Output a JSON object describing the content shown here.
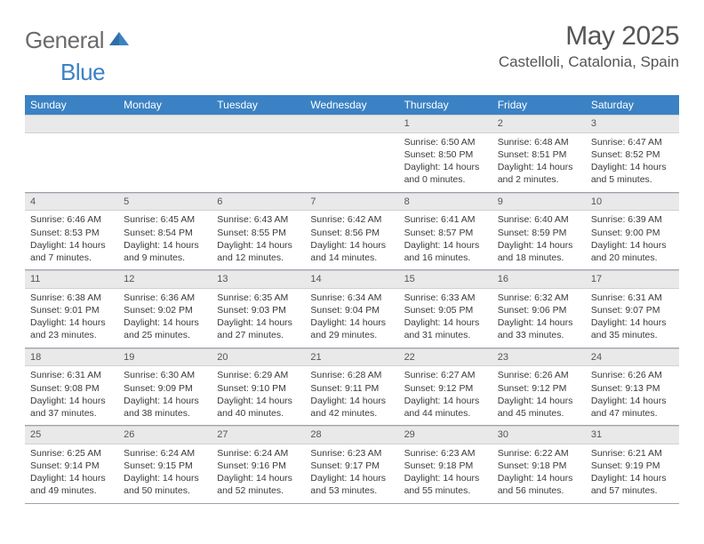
{
  "brand": {
    "part1": "General",
    "part2": "Blue"
  },
  "title": "May 2025",
  "location": "Castelloli, Catalonia, Spain",
  "weekday_bg": "#3b82c4",
  "weekdays": [
    "Sunday",
    "Monday",
    "Tuesday",
    "Wednesday",
    "Thursday",
    "Friday",
    "Saturday"
  ],
  "weeks": [
    [
      {
        "n": "",
        "sr": "",
        "ss": "",
        "dl1": "",
        "dl2": "",
        "empty": true
      },
      {
        "n": "",
        "sr": "",
        "ss": "",
        "dl1": "",
        "dl2": "",
        "empty": true
      },
      {
        "n": "",
        "sr": "",
        "ss": "",
        "dl1": "",
        "dl2": "",
        "empty": true
      },
      {
        "n": "",
        "sr": "",
        "ss": "",
        "dl1": "",
        "dl2": "",
        "empty": true
      },
      {
        "n": "1",
        "sr": "Sunrise: 6:50 AM",
        "ss": "Sunset: 8:50 PM",
        "dl1": "Daylight: 14 hours",
        "dl2": "and 0 minutes."
      },
      {
        "n": "2",
        "sr": "Sunrise: 6:48 AM",
        "ss": "Sunset: 8:51 PM",
        "dl1": "Daylight: 14 hours",
        "dl2": "and 2 minutes."
      },
      {
        "n": "3",
        "sr": "Sunrise: 6:47 AM",
        "ss": "Sunset: 8:52 PM",
        "dl1": "Daylight: 14 hours",
        "dl2": "and 5 minutes."
      }
    ],
    [
      {
        "n": "4",
        "sr": "Sunrise: 6:46 AM",
        "ss": "Sunset: 8:53 PM",
        "dl1": "Daylight: 14 hours",
        "dl2": "and 7 minutes."
      },
      {
        "n": "5",
        "sr": "Sunrise: 6:45 AM",
        "ss": "Sunset: 8:54 PM",
        "dl1": "Daylight: 14 hours",
        "dl2": "and 9 minutes."
      },
      {
        "n": "6",
        "sr": "Sunrise: 6:43 AM",
        "ss": "Sunset: 8:55 PM",
        "dl1": "Daylight: 14 hours",
        "dl2": "and 12 minutes."
      },
      {
        "n": "7",
        "sr": "Sunrise: 6:42 AM",
        "ss": "Sunset: 8:56 PM",
        "dl1": "Daylight: 14 hours",
        "dl2": "and 14 minutes."
      },
      {
        "n": "8",
        "sr": "Sunrise: 6:41 AM",
        "ss": "Sunset: 8:57 PM",
        "dl1": "Daylight: 14 hours",
        "dl2": "and 16 minutes."
      },
      {
        "n": "9",
        "sr": "Sunrise: 6:40 AM",
        "ss": "Sunset: 8:59 PM",
        "dl1": "Daylight: 14 hours",
        "dl2": "and 18 minutes."
      },
      {
        "n": "10",
        "sr": "Sunrise: 6:39 AM",
        "ss": "Sunset: 9:00 PM",
        "dl1": "Daylight: 14 hours",
        "dl2": "and 20 minutes."
      }
    ],
    [
      {
        "n": "11",
        "sr": "Sunrise: 6:38 AM",
        "ss": "Sunset: 9:01 PM",
        "dl1": "Daylight: 14 hours",
        "dl2": "and 23 minutes."
      },
      {
        "n": "12",
        "sr": "Sunrise: 6:36 AM",
        "ss": "Sunset: 9:02 PM",
        "dl1": "Daylight: 14 hours",
        "dl2": "and 25 minutes."
      },
      {
        "n": "13",
        "sr": "Sunrise: 6:35 AM",
        "ss": "Sunset: 9:03 PM",
        "dl1": "Daylight: 14 hours",
        "dl2": "and 27 minutes."
      },
      {
        "n": "14",
        "sr": "Sunrise: 6:34 AM",
        "ss": "Sunset: 9:04 PM",
        "dl1": "Daylight: 14 hours",
        "dl2": "and 29 minutes."
      },
      {
        "n": "15",
        "sr": "Sunrise: 6:33 AM",
        "ss": "Sunset: 9:05 PM",
        "dl1": "Daylight: 14 hours",
        "dl2": "and 31 minutes."
      },
      {
        "n": "16",
        "sr": "Sunrise: 6:32 AM",
        "ss": "Sunset: 9:06 PM",
        "dl1": "Daylight: 14 hours",
        "dl2": "and 33 minutes."
      },
      {
        "n": "17",
        "sr": "Sunrise: 6:31 AM",
        "ss": "Sunset: 9:07 PM",
        "dl1": "Daylight: 14 hours",
        "dl2": "and 35 minutes."
      }
    ],
    [
      {
        "n": "18",
        "sr": "Sunrise: 6:31 AM",
        "ss": "Sunset: 9:08 PM",
        "dl1": "Daylight: 14 hours",
        "dl2": "and 37 minutes."
      },
      {
        "n": "19",
        "sr": "Sunrise: 6:30 AM",
        "ss": "Sunset: 9:09 PM",
        "dl1": "Daylight: 14 hours",
        "dl2": "and 38 minutes."
      },
      {
        "n": "20",
        "sr": "Sunrise: 6:29 AM",
        "ss": "Sunset: 9:10 PM",
        "dl1": "Daylight: 14 hours",
        "dl2": "and 40 minutes."
      },
      {
        "n": "21",
        "sr": "Sunrise: 6:28 AM",
        "ss": "Sunset: 9:11 PM",
        "dl1": "Daylight: 14 hours",
        "dl2": "and 42 minutes."
      },
      {
        "n": "22",
        "sr": "Sunrise: 6:27 AM",
        "ss": "Sunset: 9:12 PM",
        "dl1": "Daylight: 14 hours",
        "dl2": "and 44 minutes."
      },
      {
        "n": "23",
        "sr": "Sunrise: 6:26 AM",
        "ss": "Sunset: 9:12 PM",
        "dl1": "Daylight: 14 hours",
        "dl2": "and 45 minutes."
      },
      {
        "n": "24",
        "sr": "Sunrise: 6:26 AM",
        "ss": "Sunset: 9:13 PM",
        "dl1": "Daylight: 14 hours",
        "dl2": "and 47 minutes."
      }
    ],
    [
      {
        "n": "25",
        "sr": "Sunrise: 6:25 AM",
        "ss": "Sunset: 9:14 PM",
        "dl1": "Daylight: 14 hours",
        "dl2": "and 49 minutes."
      },
      {
        "n": "26",
        "sr": "Sunrise: 6:24 AM",
        "ss": "Sunset: 9:15 PM",
        "dl1": "Daylight: 14 hours",
        "dl2": "and 50 minutes."
      },
      {
        "n": "27",
        "sr": "Sunrise: 6:24 AM",
        "ss": "Sunset: 9:16 PM",
        "dl1": "Daylight: 14 hours",
        "dl2": "and 52 minutes."
      },
      {
        "n": "28",
        "sr": "Sunrise: 6:23 AM",
        "ss": "Sunset: 9:17 PM",
        "dl1": "Daylight: 14 hours",
        "dl2": "and 53 minutes."
      },
      {
        "n": "29",
        "sr": "Sunrise: 6:23 AM",
        "ss": "Sunset: 9:18 PM",
        "dl1": "Daylight: 14 hours",
        "dl2": "and 55 minutes."
      },
      {
        "n": "30",
        "sr": "Sunrise: 6:22 AM",
        "ss": "Sunset: 9:18 PM",
        "dl1": "Daylight: 14 hours",
        "dl2": "and 56 minutes."
      },
      {
        "n": "31",
        "sr": "Sunrise: 6:21 AM",
        "ss": "Sunset: 9:19 PM",
        "dl1": "Daylight: 14 hours",
        "dl2": "and 57 minutes."
      }
    ]
  ]
}
